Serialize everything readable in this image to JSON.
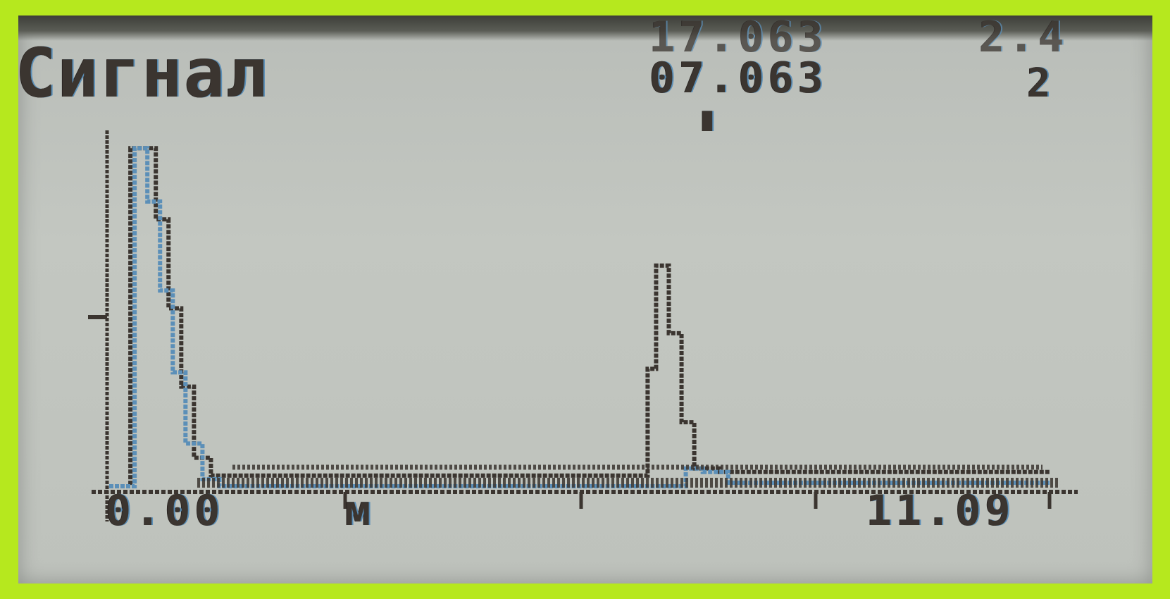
{
  "screen": {
    "title": "Сигнал",
    "readout_top": "17.063",
    "readout_main": "07.063",
    "cursor_marker": "▮",
    "right_top": "2.4",
    "right_bottom": "2"
  },
  "chart_data": {
    "type": "line",
    "title": "Сигнал",
    "xlabel": "м",
    "x_range": [
      0.0,
      11.09
    ],
    "x_tick_labels": [
      "0.00",
      "11.09"
    ],
    "series": [
      {
        "values_x": [
          0.0,
          0.25,
          0.4,
          0.55,
          0.7,
          0.85,
          1.0,
          1.2,
          1.4,
          6.3,
          6.35,
          6.45,
          6.6,
          6.75,
          6.9,
          7.2,
          11.09
        ],
        "values_y": [
          0.0,
          0.95,
          0.95,
          0.75,
          0.5,
          0.28,
          0.08,
          0.03,
          0.03,
          0.03,
          0.33,
          0.62,
          0.43,
          0.18,
          0.05,
          0.04,
          0.04
        ]
      },
      {
        "values_x": [
          0.0,
          0.3,
          0.45,
          0.6,
          0.75,
          0.9,
          1.1,
          1.3,
          6.4,
          6.6,
          6.8,
          7.0,
          7.3,
          11.09
        ],
        "values_y": [
          0.0,
          0.95,
          0.8,
          0.55,
          0.32,
          0.12,
          0.02,
          0.0,
          0.0,
          0.0,
          0.05,
          0.04,
          0.01,
          0.01
        ]
      }
    ],
    "colors": {
      "trace": "#3b3530",
      "trace_alt": "#5b8fb8",
      "background": "#c0c4be",
      "bezel": "#b6e81e"
    }
  }
}
